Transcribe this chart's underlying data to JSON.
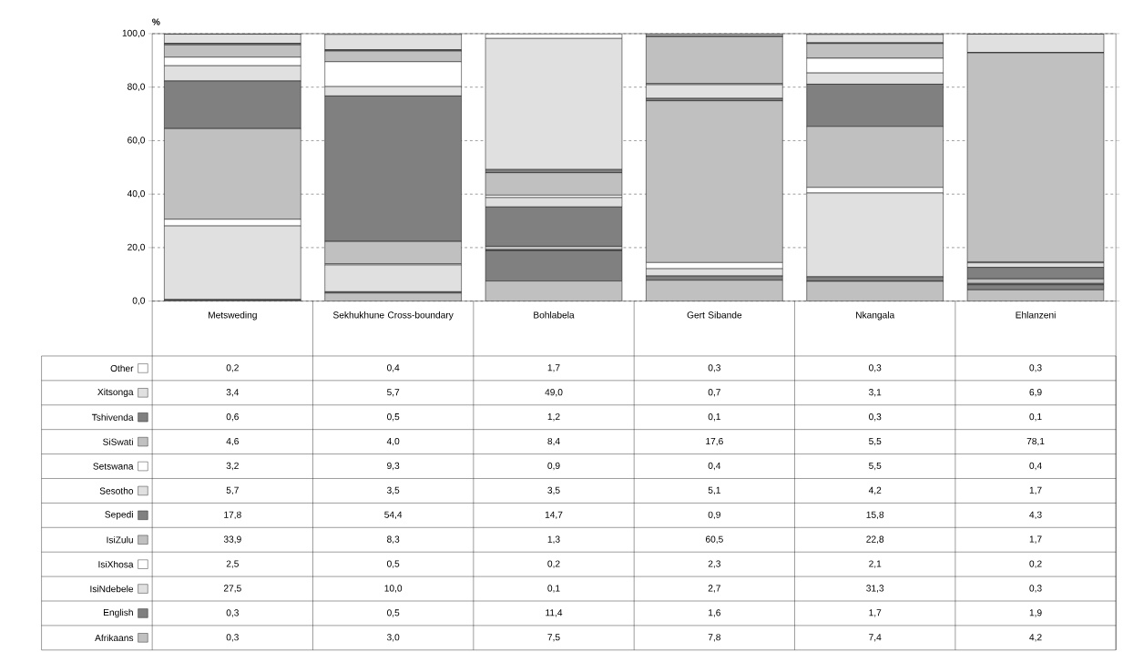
{
  "chart_data": {
    "type": "bar",
    "stacked": true,
    "ylabel": "%",
    "categories": [
      "Metsweding",
      "Sekhukhune Cross-boundary",
      "Bohlabela",
      "Gert Sibande",
      "Nkangala",
      "Ehlanzeni"
    ],
    "ylim": [
      0,
      100
    ],
    "yticks": [
      {
        "value": 0,
        "label": "0,0"
      },
      {
        "value": 20,
        "label": "20,0"
      },
      {
        "value": 40,
        "label": "40,0"
      },
      {
        "value": 60,
        "label": "60,0"
      },
      {
        "value": 80,
        "label": "80,0"
      },
      {
        "value": 100,
        "label": "100,0"
      }
    ],
    "grid": "y",
    "legend": "bottom left",
    "series": [
      {
        "name": "Afrikaans",
        "color": "#c0c0c0",
        "values": [
          0.3,
          3.0,
          7.5,
          7.8,
          7.4,
          4.2
        ],
        "value_labels": [
          "0,3",
          "3,0",
          "7,5",
          "7,8",
          "7,4",
          "4,2"
        ]
      },
      {
        "name": "English",
        "color": "#808080",
        "values": [
          0.3,
          0.5,
          11.4,
          1.6,
          1.7,
          1.9
        ],
        "value_labels": [
          "0,3",
          "0,5",
          "11,4",
          "1,6",
          "1,7",
          "1,9"
        ]
      },
      {
        "name": "IsiNdebele",
        "color": "#e0e0e0",
        "values": [
          27.5,
          10.0,
          0.1,
          2.7,
          31.3,
          0.3
        ],
        "value_labels": [
          "27,5",
          "10,0",
          "0,1",
          "2,7",
          "31,3",
          "0,3"
        ]
      },
      {
        "name": "IsiXhosa",
        "color": "#ffffff",
        "values": [
          2.5,
          0.5,
          0.2,
          2.3,
          2.1,
          0.2
        ],
        "value_labels": [
          "2,5",
          "0,5",
          "0,2",
          "2,3",
          "2,1",
          "0,2"
        ]
      },
      {
        "name": "IsiZulu",
        "color": "#c0c0c0",
        "values": [
          33.9,
          8.3,
          1.3,
          60.5,
          22.8,
          1.7
        ],
        "value_labels": [
          "33,9",
          "8,3",
          "1,3",
          "60,5",
          "22,8",
          "1,7"
        ]
      },
      {
        "name": "Sepedi",
        "color": "#808080",
        "values": [
          17.8,
          54.4,
          14.7,
          0.9,
          15.8,
          4.3
        ],
        "value_labels": [
          "17,8",
          "54,4",
          "14,7",
          "0,9",
          "15,8",
          "4,3"
        ]
      },
      {
        "name": "Sesotho",
        "color": "#e0e0e0",
        "values": [
          5.7,
          3.5,
          3.5,
          5.1,
          4.2,
          1.7
        ],
        "value_labels": [
          "5,7",
          "3,5",
          "3,5",
          "5,1",
          "4,2",
          "1,7"
        ]
      },
      {
        "name": "Setswana",
        "color": "#ffffff",
        "values": [
          3.2,
          9.3,
          0.9,
          0.4,
          5.5,
          0.4
        ],
        "value_labels": [
          "3,2",
          "9,3",
          "0,9",
          "0,4",
          "5,5",
          "0,4"
        ]
      },
      {
        "name": "SiSwati",
        "color": "#c0c0c0",
        "values": [
          4.6,
          4.0,
          8.4,
          17.6,
          5.5,
          78.1
        ],
        "value_labels": [
          "4,6",
          "4,0",
          "8,4",
          "17,6",
          "5,5",
          "78,1"
        ]
      },
      {
        "name": "Tshivenda",
        "color": "#808080",
        "values": [
          0.6,
          0.5,
          1.2,
          0.1,
          0.3,
          0.1
        ],
        "value_labels": [
          "0,6",
          "0,5",
          "1,2",
          "0,1",
          "0,3",
          "0,1"
        ]
      },
      {
        "name": "Xitsonga",
        "color": "#e0e0e0",
        "values": [
          3.4,
          5.7,
          49.0,
          0.7,
          3.1,
          6.9
        ],
        "value_labels": [
          "3,4",
          "5,7",
          "49,0",
          "0,7",
          "3,1",
          "6,9"
        ]
      },
      {
        "name": "Other",
        "color": "#ffffff",
        "values": [
          0.2,
          0.4,
          1.7,
          0.3,
          0.3,
          0.3
        ],
        "value_labels": [
          "0,2",
          "0,4",
          "1,7",
          "0,3",
          "0,3",
          "0,3"
        ]
      }
    ]
  }
}
